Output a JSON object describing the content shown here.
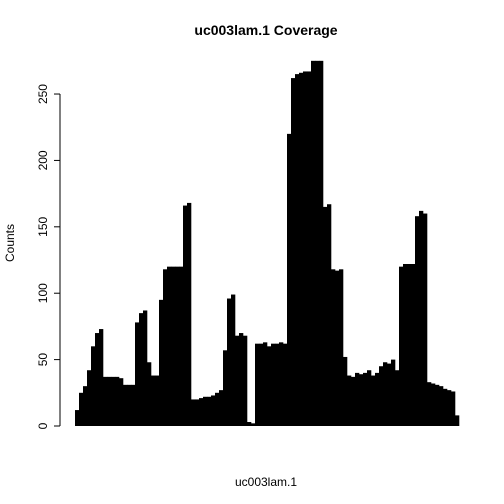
{
  "chart_data": {
    "type": "bar",
    "title": "uc003lam.1 Coverage",
    "x_label": "uc003lam.1",
    "y_label": "Counts",
    "color": "#000000",
    "grid": false,
    "categories": [
      null,
      null,
      null,
      null,
      null,
      null,
      null,
      null,
      null,
      null,
      null,
      null,
      null,
      null,
      null,
      null,
      null,
      null,
      null,
      null,
      null,
      null,
      null,
      null,
      null,
      null,
      null,
      null,
      null,
      null,
      null,
      null,
      null,
      null,
      null,
      null,
      null,
      null,
      null,
      null,
      null,
      null,
      null,
      null,
      null,
      null,
      null,
      null,
      null,
      null,
      null,
      null,
      null,
      null,
      null,
      null,
      null,
      null,
      null,
      null,
      null,
      null,
      null,
      null,
      null,
      null,
      null,
      null,
      null,
      null,
      null,
      null,
      null,
      null,
      null,
      null,
      null,
      null,
      null,
      null,
      null,
      null,
      null,
      null,
      null,
      null,
      null,
      null,
      null,
      null,
      null,
      null,
      null,
      null,
      null,
      null
    ],
    "values": [
      12,
      25,
      30,
      42,
      60,
      70,
      73,
      37,
      37,
      37,
      37,
      36,
      31,
      31,
      31,
      78,
      85,
      87,
      48,
      38,
      38,
      95,
      118,
      120,
      120,
      120,
      120,
      166,
      168,
      20,
      20,
      21,
      22,
      22,
      23,
      25,
      27,
      57,
      96,
      99,
      68,
      70,
      68,
      3,
      2,
      62,
      62,
      63,
      60,
      62,
      62,
      63,
      62,
      220,
      262,
      265,
      266,
      267,
      267,
      275,
      275,
      275,
      165,
      167,
      118,
      117,
      118,
      52,
      38,
      37,
      40,
      39,
      40,
      42,
      38,
      40,
      45,
      48,
      47,
      50,
      42,
      120,
      122,
      122,
      122,
      158,
      162,
      160,
      33,
      32,
      31,
      30,
      28,
      27,
      26,
      8
    ],
    "ylim": [
      0,
      276
    ],
    "yticks": [
      0,
      50,
      100,
      150,
      200,
      250
    ]
  }
}
